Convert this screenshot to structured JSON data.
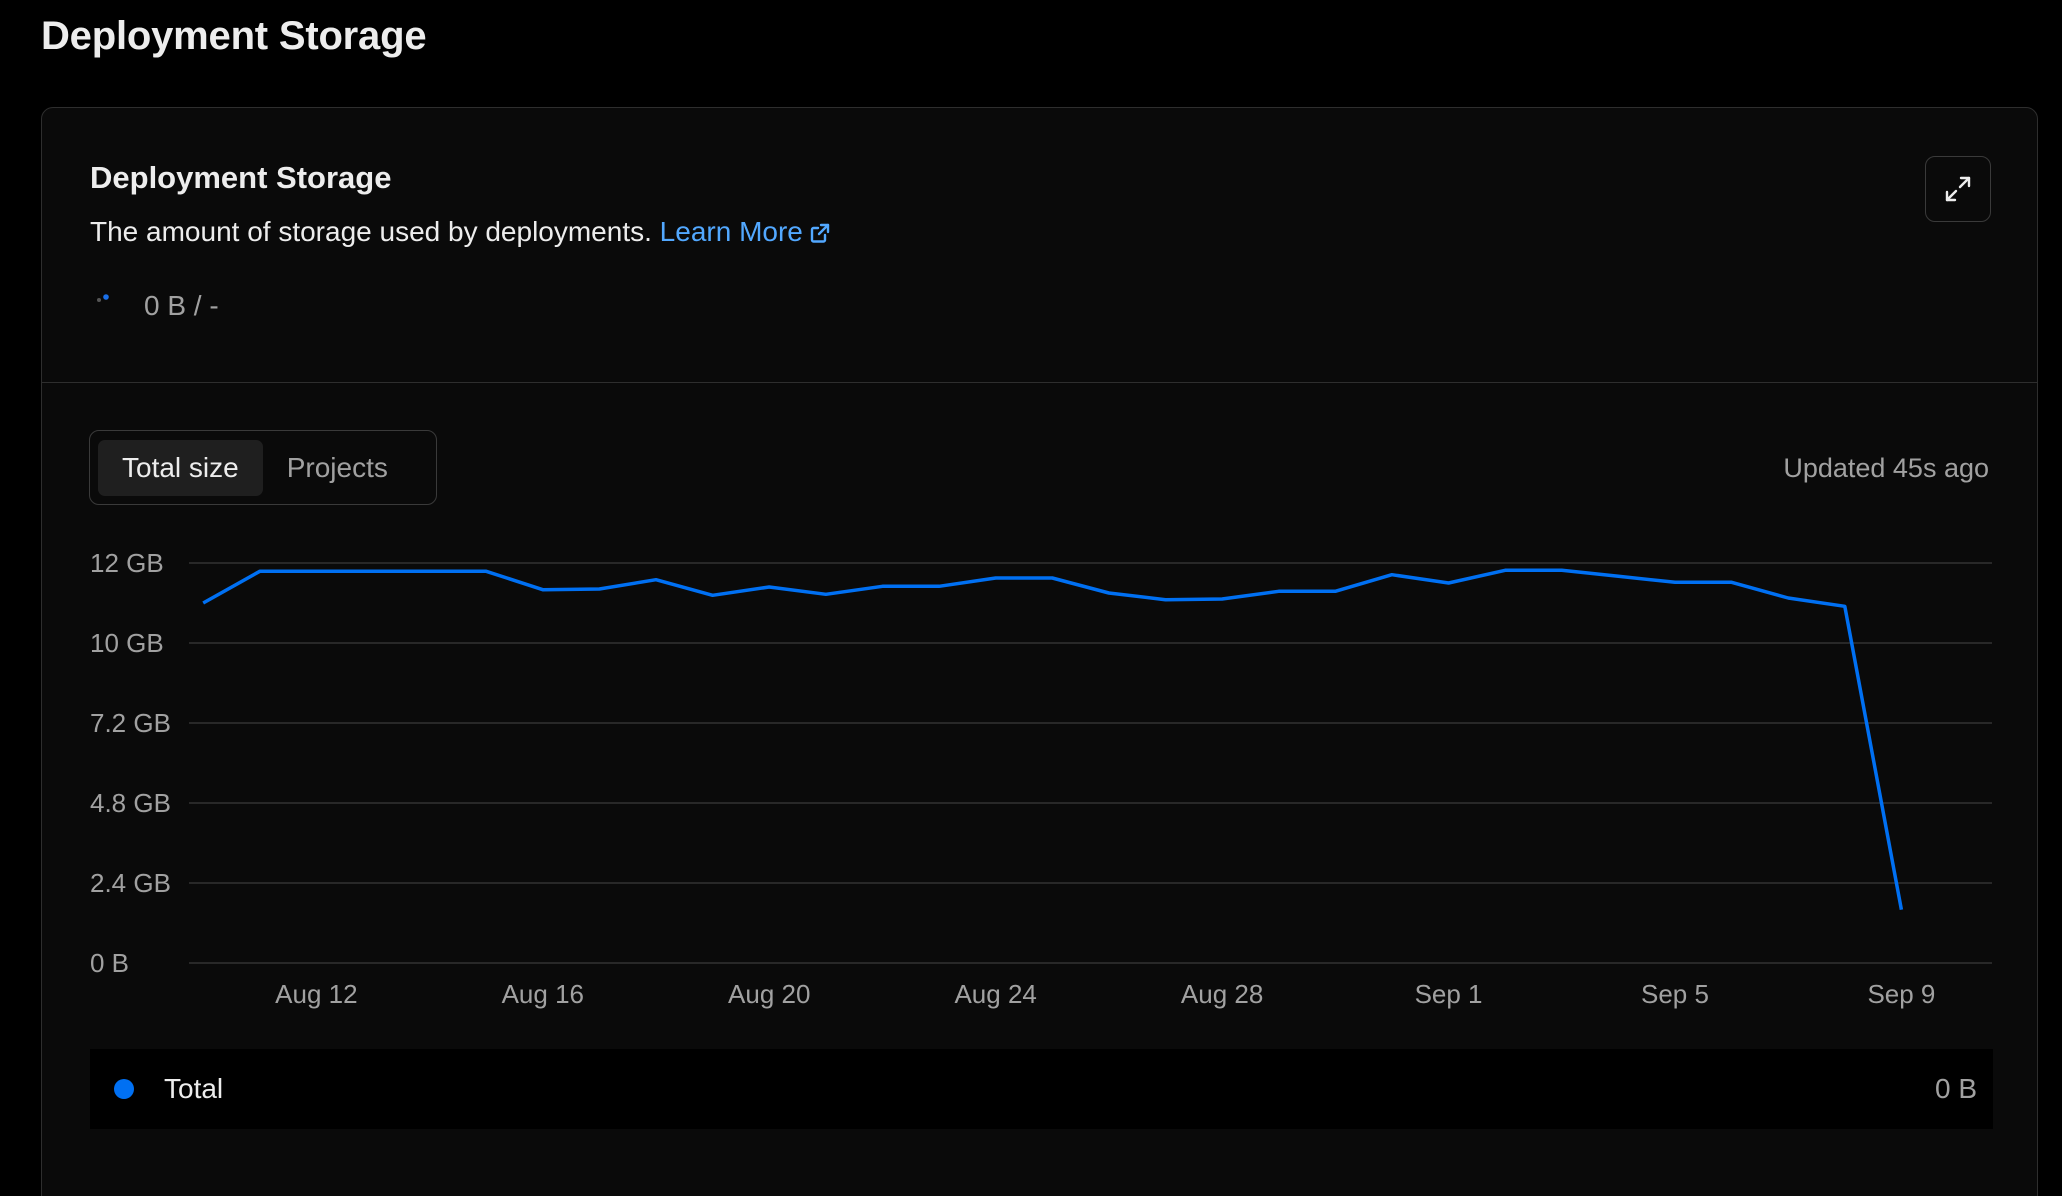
{
  "page": {
    "title": "Deployment Storage"
  },
  "card": {
    "title": "Deployment Storage",
    "description": "The amount of storage used by deployments.",
    "learn_more": "Learn More",
    "usage": "0 B / -"
  },
  "tabs": [
    {
      "label": "Total size",
      "active": true
    },
    {
      "label": "Projects",
      "active": false
    }
  ],
  "updated": "Updated 45s ago",
  "colors": {
    "accent": "#0070f3",
    "link": "#52a8ff"
  },
  "legend": {
    "label": "Total",
    "value": "0 B"
  },
  "chart_data": {
    "type": "line",
    "ylabel": "",
    "xlabel": "",
    "y_ticks": [
      "0 B",
      "2.4 GB",
      "4.8 GB",
      "7.2 GB",
      "10 GB",
      "12 GB"
    ],
    "y_tick_values": [
      0,
      2.4,
      4.8,
      7.2,
      9.6,
      12
    ],
    "ylim": [
      0,
      12
    ],
    "x_ticks": [
      "Aug 12",
      "Aug 16",
      "Aug 20",
      "Aug 24",
      "Aug 28",
      "Sep 1",
      "Sep 5",
      "Sep 9"
    ],
    "x_tick_days": [
      2,
      6,
      10,
      14,
      18,
      22,
      26,
      30
    ],
    "xlim": [
      -0.25,
      31.6
    ],
    "grid": true,
    "legend_position": "bottom",
    "series": [
      {
        "name": "Total",
        "x": [
          "Aug 10",
          "Aug 11",
          "Aug 12",
          "Aug 13",
          "Aug 14",
          "Aug 15",
          "Aug 16",
          "Aug 17",
          "Aug 18",
          "Aug 19",
          "Aug 20",
          "Aug 21",
          "Aug 22",
          "Aug 23",
          "Aug 24",
          "Aug 25",
          "Aug 26",
          "Aug 27",
          "Aug 28",
          "Aug 29",
          "Aug 30",
          "Aug 31",
          "Sep 1",
          "Sep 2",
          "Sep 3",
          "Sep 4",
          "Sep 5",
          "Sep 6",
          "Sep 7",
          "Sep 8",
          "Sep 9"
        ],
        "values": [
          10.8,
          11.75,
          11.75,
          11.75,
          11.75,
          11.75,
          11.2,
          11.22,
          11.5,
          11.03,
          11.28,
          11.06,
          11.3,
          11.3,
          11.55,
          11.55,
          11.1,
          10.9,
          10.92,
          11.15,
          11.15,
          11.65,
          11.4,
          11.78,
          11.78,
          11.6,
          11.42,
          11.42,
          10.95,
          10.7,
          1.6
        ]
      }
    ]
  }
}
